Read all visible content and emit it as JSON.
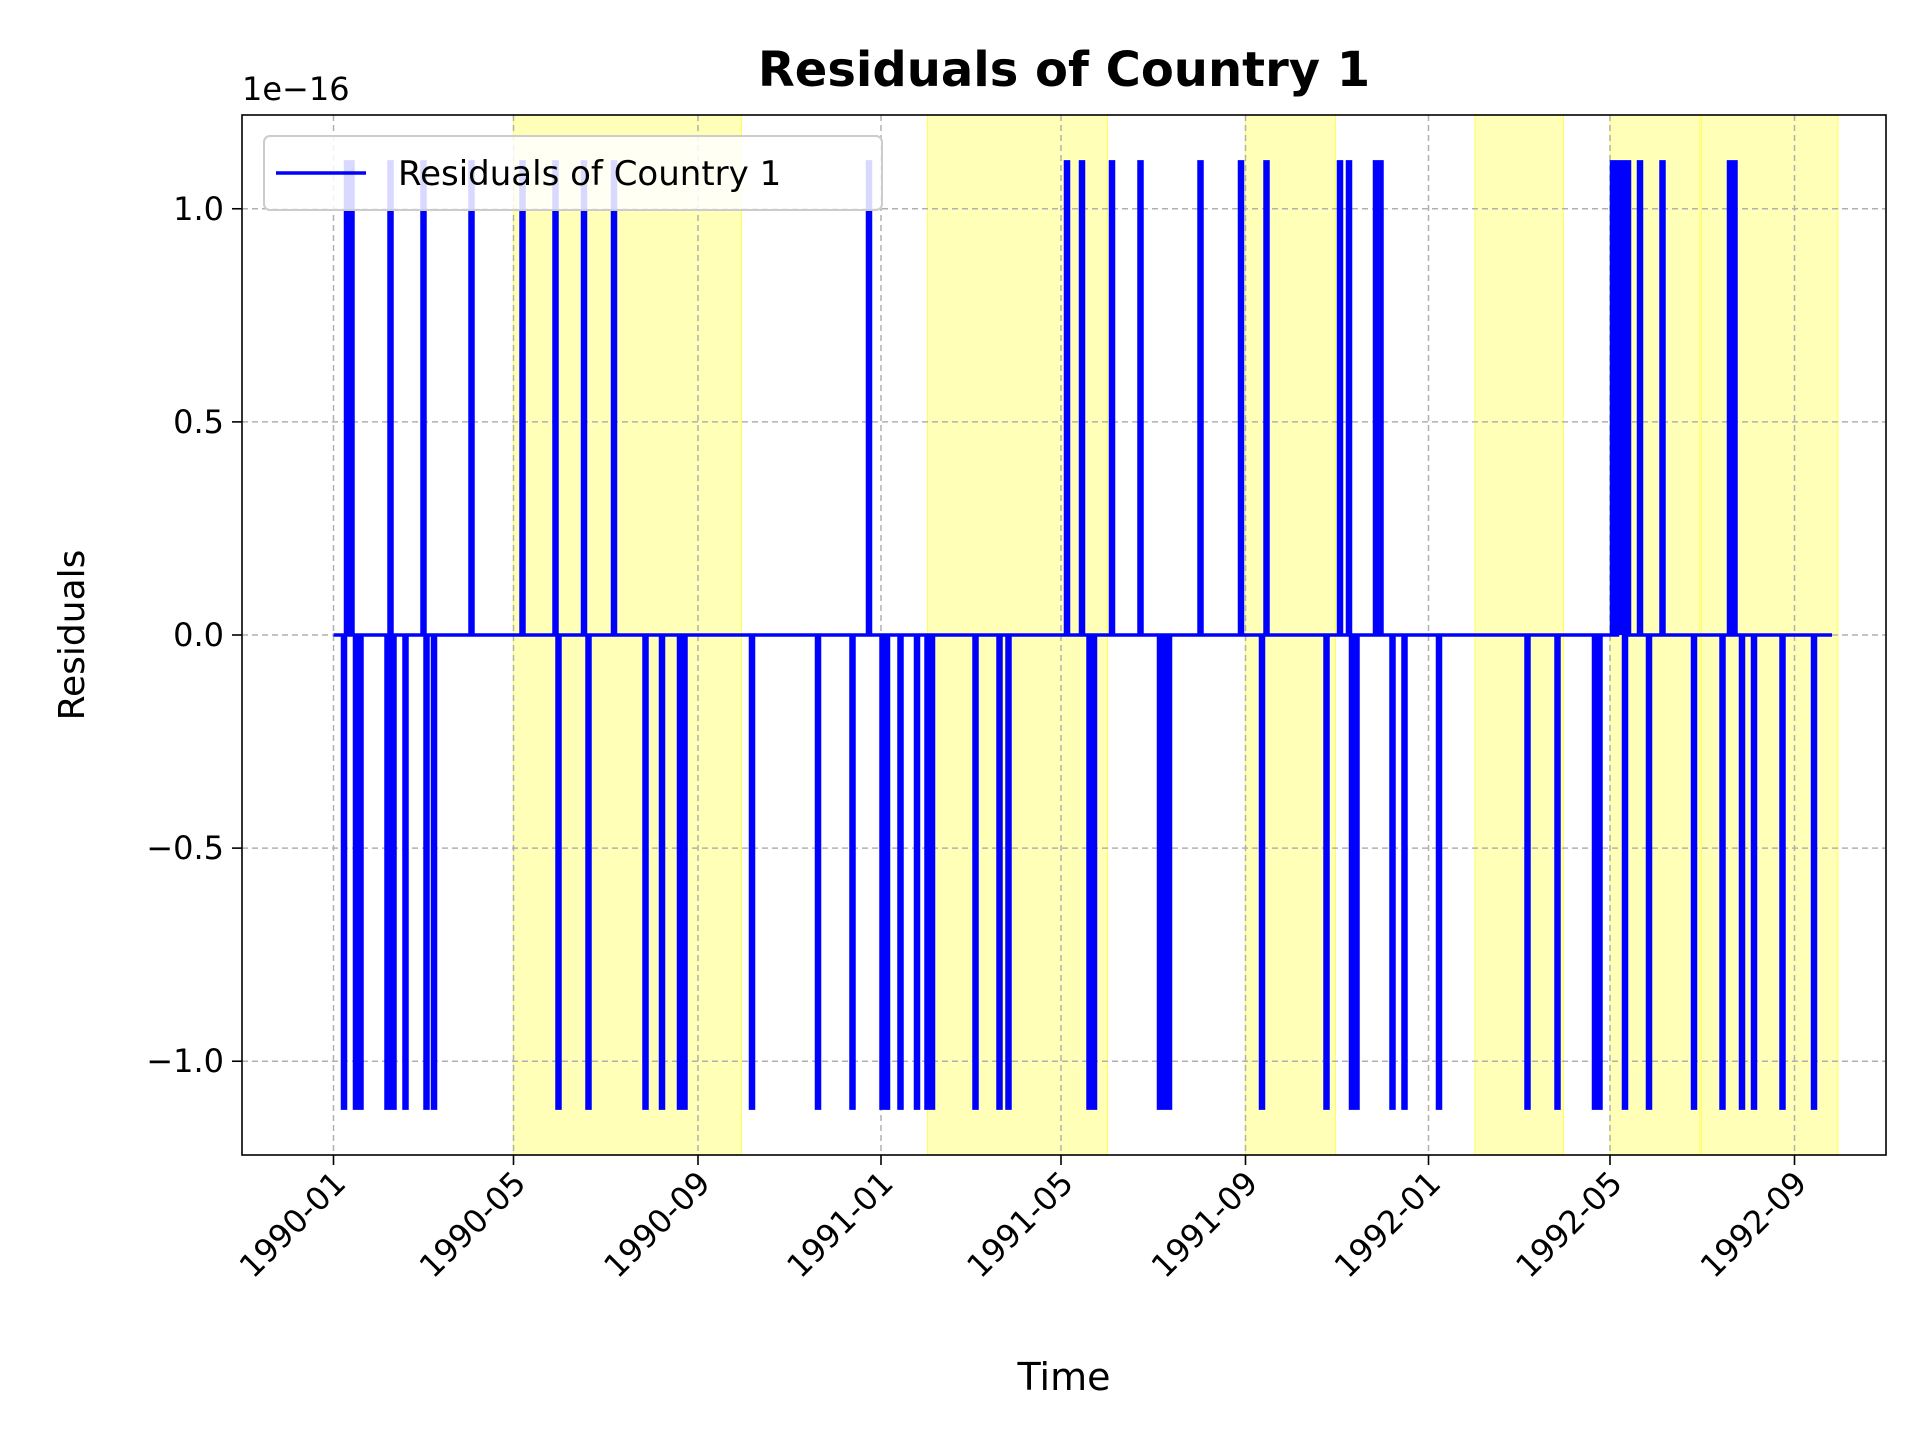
{
  "chart_data": {
    "type": "line",
    "title": "Residuals of Country 1",
    "xlabel": "Time",
    "ylabel": "Residuals",
    "offset_text": "1e−16",
    "scale_exponent": -16,
    "xlim": [
      "1989-11-01",
      "1992-11-01"
    ],
    "ylim": [
      -1.22,
      1.22
    ],
    "x_ticks": [
      "1990-01",
      "1990-05",
      "1990-09",
      "1991-01",
      "1991-05",
      "1991-09",
      "1992-01",
      "1992-05",
      "1992-09"
    ],
    "y_ticks": [
      {
        "value": -1.0,
        "label": "−1.0"
      },
      {
        "value": -0.5,
        "label": "−0.5"
      },
      {
        "value": 0.0,
        "label": "0.0"
      },
      {
        "value": 0.5,
        "label": "0.5"
      },
      {
        "value": 1.0,
        "label": "1.0"
      }
    ],
    "grid": true,
    "legend": {
      "position": "upper-left",
      "entries": [
        "Residuals of Country 1"
      ]
    },
    "colors": {
      "series": "#0000ff",
      "shade": "#ffff99",
      "grid": "#b0b0b0"
    },
    "shaded_regions": [
      [
        "1990-05-01",
        "1990-09-30"
      ],
      [
        "1991-02-01",
        "1991-06-01"
      ],
      [
        "1991-09-01",
        "1991-10-31"
      ],
      [
        "1992-02-01",
        "1992-03-31"
      ],
      [
        "1992-05-01",
        "1992-06-30"
      ],
      [
        "1992-07-01",
        "1992-09-30"
      ]
    ],
    "series": [
      {
        "name": "Residuals of Country 1",
        "baseline": 0.0,
        "x_range": [
          "1990-01-01",
          "1992-09-26"
        ],
        "spike_amplitude": 1.11,
        "spikes": [
          [
            "1990-01-08",
            -1
          ],
          [
            "1990-01-10",
            1
          ],
          [
            "1990-01-13",
            1
          ],
          [
            "1990-01-16",
            -1
          ],
          [
            "1990-01-19",
            -1
          ],
          [
            "1990-02-06",
            -1
          ],
          [
            "1990-02-08",
            1
          ],
          [
            "1990-02-10",
            -1
          ],
          [
            "1990-02-18",
            -1
          ],
          [
            "1990-03-02",
            1
          ],
          [
            "1990-03-04",
            -1
          ],
          [
            "1990-03-09",
            -1
          ],
          [
            "1990-04-03",
            1
          ],
          [
            "1990-05-07",
            1
          ],
          [
            "1990-05-29",
            1
          ],
          [
            "1990-05-31",
            -1
          ],
          [
            "1990-06-17",
            1
          ],
          [
            "1990-06-20",
            -1
          ],
          [
            "1990-07-07",
            1
          ],
          [
            "1990-07-28",
            -1
          ],
          [
            "1990-08-08",
            -1
          ],
          [
            "1990-08-20",
            -1
          ],
          [
            "1990-08-23",
            -1
          ],
          [
            "1990-10-07",
            -1
          ],
          [
            "1990-11-20",
            -1
          ],
          [
            "1990-12-13",
            -1
          ],
          [
            "1990-12-24",
            1
          ],
          [
            "1991-01-02",
            -1
          ],
          [
            "1991-01-05",
            -1
          ],
          [
            "1991-01-14",
            -1
          ],
          [
            "1991-01-25",
            -1
          ],
          [
            "1991-02-01",
            -1
          ],
          [
            "1991-02-04",
            -1
          ],
          [
            "1991-03-05",
            -1
          ],
          [
            "1991-03-21",
            -1
          ],
          [
            "1991-03-27",
            -1
          ],
          [
            "1991-05-05",
            1
          ],
          [
            "1991-05-15",
            1
          ],
          [
            "1991-05-20",
            -1
          ],
          [
            "1991-05-23",
            -1
          ],
          [
            "1991-06-04",
            1
          ],
          [
            "1991-06-23",
            1
          ],
          [
            "1991-07-06",
            -1
          ],
          [
            "1991-07-09",
            -1
          ],
          [
            "1991-07-12",
            -1
          ],
          [
            "1991-08-02",
            1
          ],
          [
            "1991-08-29",
            1
          ],
          [
            "1991-09-12",
            -1
          ],
          [
            "1991-09-15",
            1
          ],
          [
            "1991-10-25",
            -1
          ],
          [
            "1991-11-03",
            1
          ],
          [
            "1991-11-09",
            1
          ],
          [
            "1991-11-11",
            -1
          ],
          [
            "1991-11-14",
            -1
          ],
          [
            "1991-11-27",
            1
          ],
          [
            "1991-11-30",
            1
          ],
          [
            "1991-12-08",
            -1
          ],
          [
            "1991-12-16",
            -1
          ],
          [
            "1992-01-08",
            -1
          ],
          [
            "1992-03-07",
            -1
          ],
          [
            "1992-03-27",
            -1
          ],
          [
            "1992-04-21",
            -1
          ],
          [
            "1992-04-24",
            -1
          ],
          [
            "1992-05-03",
            1
          ],
          [
            "1992-05-07",
            1
          ],
          [
            "1992-05-09",
            1
          ],
          [
            "1992-05-11",
            -1
          ],
          [
            "1992-05-13",
            1
          ],
          [
            "1992-05-21",
            1
          ],
          [
            "1992-05-27",
            -1
          ],
          [
            "1992-06-05",
            1
          ],
          [
            "1992-06-26",
            -1
          ],
          [
            "1992-07-15",
            -1
          ],
          [
            "1992-07-20",
            1
          ],
          [
            "1992-07-23",
            1
          ],
          [
            "1992-07-28",
            -1
          ],
          [
            "1992-08-05",
            -1
          ],
          [
            "1992-08-24",
            -1
          ],
          [
            "1992-09-14",
            -1
          ]
        ]
      }
    ]
  }
}
